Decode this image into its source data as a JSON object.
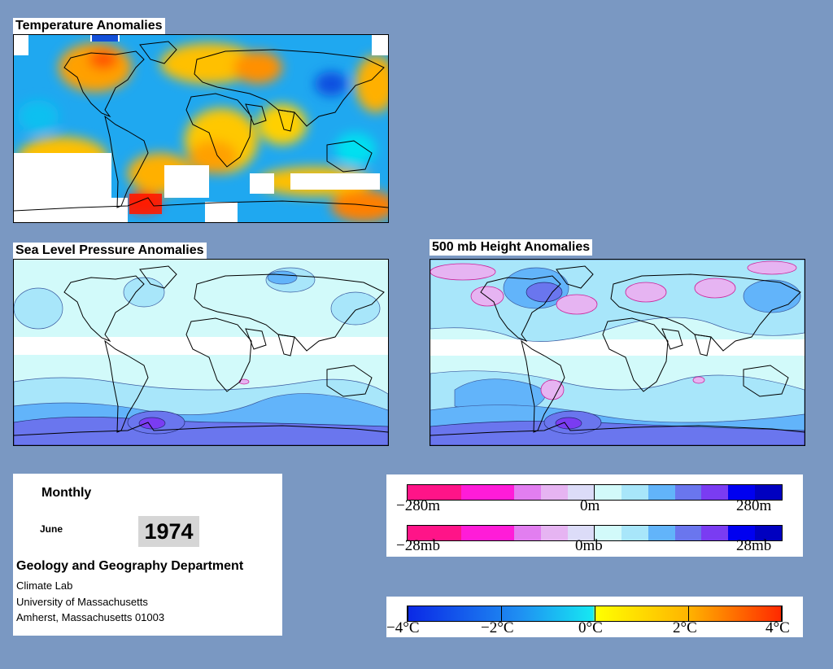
{
  "panels": {
    "temperature": {
      "title": "Temperature Anomalies"
    },
    "slp": {
      "title": "Sea Level Pressure Anomalies"
    },
    "height": {
      "title": "500 mb Height Anomalies"
    }
  },
  "info": {
    "period": "Monthly",
    "month": "June",
    "year": "1974",
    "department": "Geology and Geography Department",
    "lines": [
      "Climate Lab",
      "University of Massachusetts",
      "Amherst, Massachusetts 01003"
    ]
  },
  "legend_height": {
    "labels": [
      "−280m",
      "0m",
      "280m"
    ],
    "colors": [
      "#ff1488",
      "#ff1488",
      "#ff1cd8",
      "#ff1cd8",
      "#e27ef0",
      "#e6b4f2",
      "#dcdcf8",
      "#d2fafa",
      "#a8e6fa",
      "#62b4fa",
      "#6a76ee",
      "#7a3cf2",
      "#0000f0",
      "#0000c0"
    ]
  },
  "legend_pressure": {
    "labels": [
      "−28mb",
      "0mb",
      "28mb"
    ],
    "colors": [
      "#ff1488",
      "#ff1488",
      "#ff1cd8",
      "#ff1cd8",
      "#e27ef0",
      "#e6b4f2",
      "#dcdcf8",
      "#d2fafa",
      "#a8e6fa",
      "#62b4fa",
      "#6a76ee",
      "#7a3cf2",
      "#0000f0",
      "#0000c0"
    ]
  },
  "legend_temperature": {
    "labels": [
      "−4°C",
      "−2°C",
      "0°C",
      "2°C",
      "4°C"
    ],
    "gradient": [
      "#0a28e6",
      "#1f8ff2",
      "#16e8f2",
      "#ffff00",
      "#ffb400",
      "#ff2800"
    ]
  },
  "colors": {
    "background": "#7a98c2",
    "land_outline": "#000000",
    "missing": "#ffffff"
  }
}
